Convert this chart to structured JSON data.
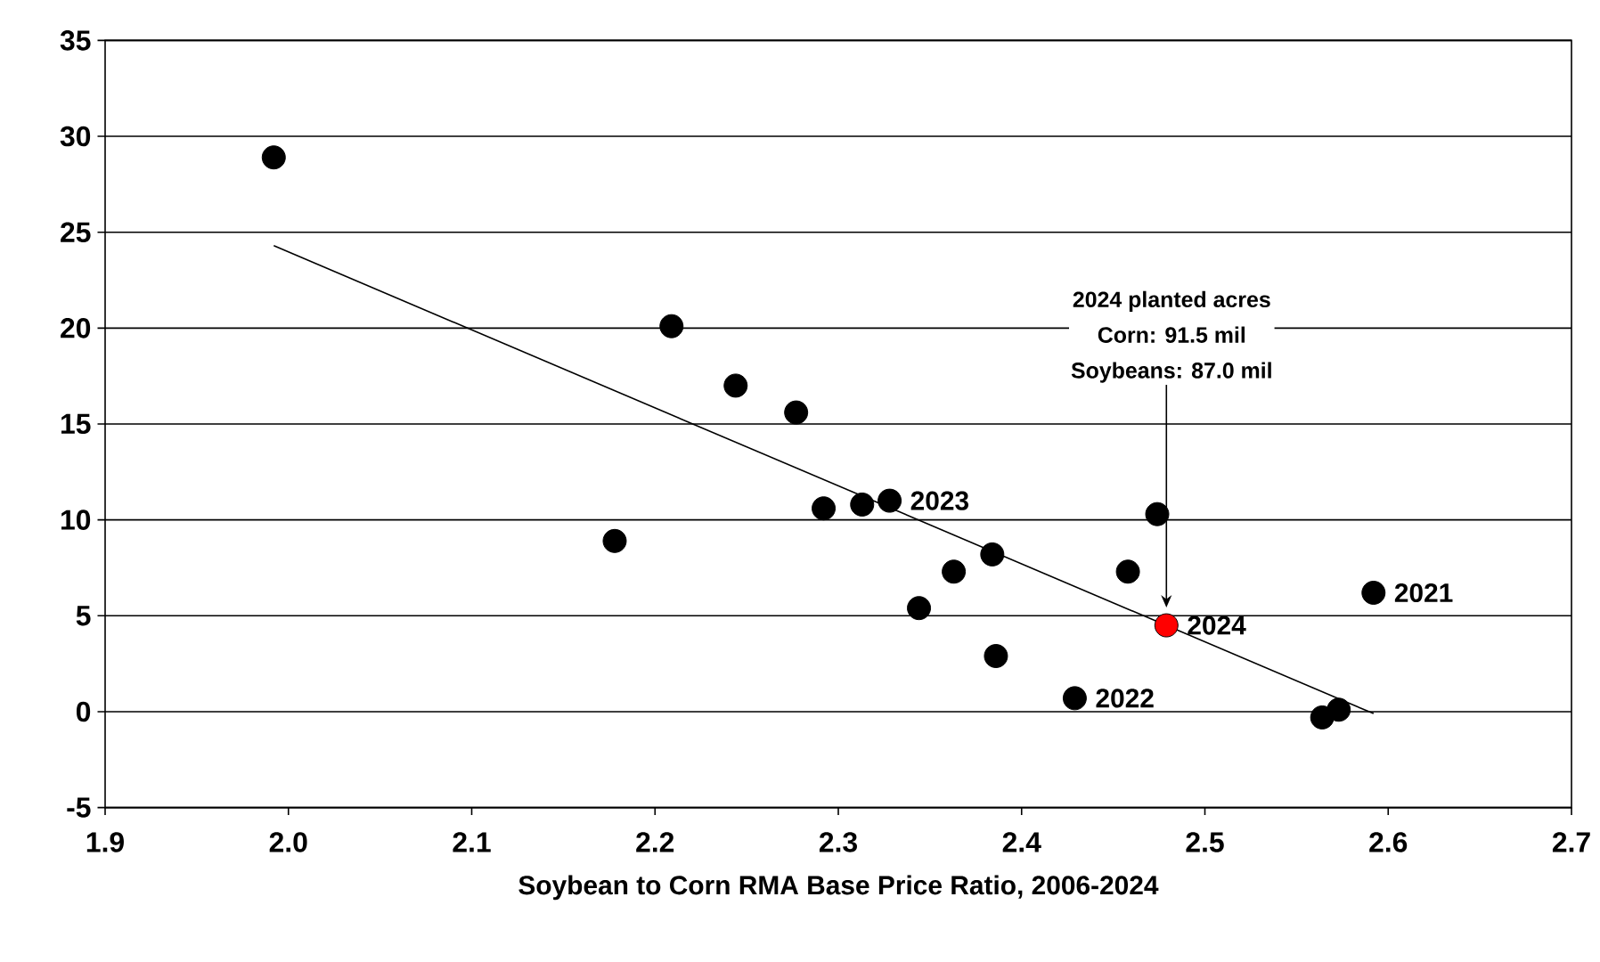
{
  "chart_data": {
    "type": "scatter",
    "xlabel": "Soybean to Corn RMA Base Price Ratio, 2006-2024",
    "xlim": [
      1.9,
      2.7
    ],
    "xticks": [
      1.9,
      {
        "value": 2.0,
        "label": "2.0"
      },
      2.1,
      2.2,
      2.3,
      2.4,
      2.5,
      2.6,
      2.7
    ],
    "ylim": [
      -5,
      35
    ],
    "yticks": [
      -5,
      0,
      5,
      10,
      15,
      20,
      25,
      30,
      35
    ],
    "grid": "y",
    "marker": "circle",
    "series": [
      {
        "color": "#000000",
        "x": [
          1.992,
          2.178,
          2.209,
          2.244,
          2.277,
          2.292,
          2.313,
          2.328,
          2.344,
          2.363,
          2.384,
          2.386,
          2.429,
          2.458,
          2.474,
          2.564,
          2.573,
          2.592
        ],
        "values": [
          28.9,
          8.9,
          20.1,
          17.0,
          15.6,
          10.6,
          10.8,
          11.0,
          5.4,
          7.3,
          8.2,
          2.9,
          0.7,
          7.3,
          10.3,
          -0.3,
          0.1,
          6.2
        ]
      },
      {
        "color": "#ff0000",
        "x": [
          2.479
        ],
        "values": [
          4.5
        ]
      },
      {
        "type": "line",
        "marker": "none",
        "color": "#000000",
        "x": [
          1.992,
          2.592
        ],
        "values": [
          24.3,
          -0.1
        ]
      }
    ],
    "annotations": [
      {
        "text": "2023",
        "x": 2.328,
        "y": 11.0
      },
      {
        "text": "2024",
        "x": 2.479,
        "y": 4.5
      },
      {
        "text": "2022",
        "x": 2.429,
        "y": 0.7
      },
      {
        "text": "2021",
        "x": 2.592,
        "y": 6.2
      },
      "2024 planted acres",
      "Corn: 91.5 mil",
      "Soybeans: 87.0 mil"
    ]
  }
}
